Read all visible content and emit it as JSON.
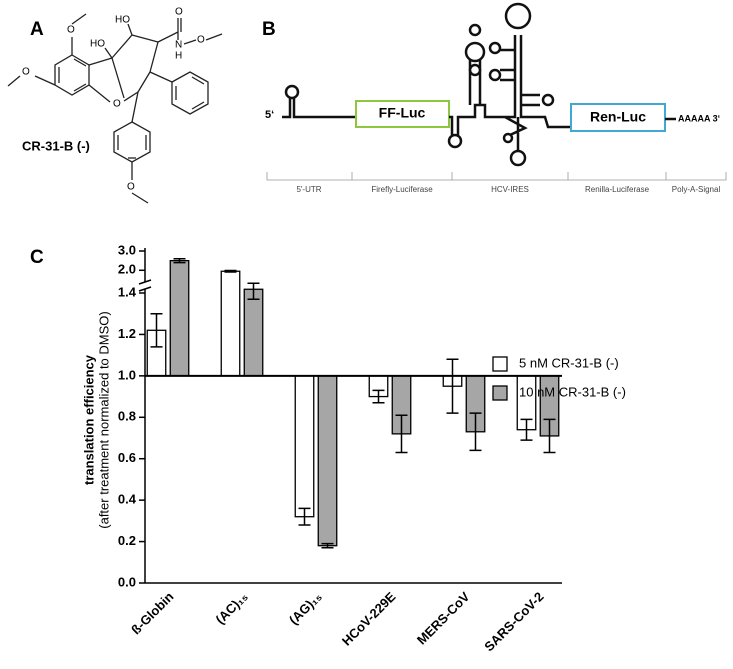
{
  "panel_labels": [
    "A",
    "B",
    "C"
  ],
  "structure": {
    "atoms": [
      "O",
      "HO",
      "HO",
      "O",
      "N",
      "H",
      "O",
      "O",
      "O",
      "O"
    ],
    "name": "CR-31-B (-)"
  },
  "diagram": {
    "five_prime": "5‘",
    "ff_luc": "FF-Luc",
    "ren_luc": "Ren-Luc",
    "tail": "AAAAA 3‘",
    "regions": [
      "5'-UTR",
      "Firefly-Luciferase",
      "HCV-IRES",
      "Renilla-Luciferase",
      "Poly-A-Signal"
    ]
  },
  "chart_data": {
    "type": "bar",
    "y_label": "translation efficiency",
    "y_label_sub": "(after treatment normalized to DMSO)",
    "categories": [
      "ß-Globin",
      "(AC)₁₅",
      "(AG)₁₅",
      "HCoV-229E",
      "MERS-CoV",
      "SARS-CoV-2"
    ],
    "series": [
      {
        "name": "5 nM CR-31-B (-)",
        "color": "#ffffff",
        "values": [
          1.22,
          1.95,
          0.32,
          0.9,
          0.95,
          0.74
        ],
        "errors": [
          0.08,
          0.04,
          0.04,
          0.03,
          0.13,
          0.05
        ]
      },
      {
        "name": "10 nM CR-31-B (-)",
        "color": "#a6a6a6",
        "values": [
          2.5,
          1.45,
          0.18,
          0.72,
          0.73,
          0.71
        ],
        "errors": [
          0.1,
          0.08,
          0.01,
          0.09,
          0.09,
          0.08
        ]
      }
    ],
    "baseline": 1.0,
    "ylim": [
      0,
      3.0
    ],
    "y_break": [
      1.4,
      1.6
    ],
    "yticks": [
      {
        "value": 0,
        "label": "0.0"
      },
      0.2,
      0.4,
      0.6,
      0.8,
      {
        "value": 1,
        "label": "1.0"
      },
      1.2,
      1.4,
      {
        "value": 2,
        "label": "2.0"
      },
      {
        "value": 3,
        "label": "3.0"
      }
    ],
    "grid": false,
    "legend": "right"
  }
}
